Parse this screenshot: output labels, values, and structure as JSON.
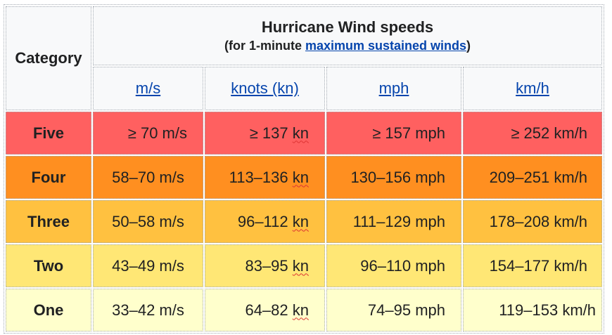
{
  "header": {
    "category_label": "Category",
    "title": "Hurricane Wind speeds",
    "subtitle_prefix": "(for 1-minute ",
    "subtitle_link": "maximum sustained winds",
    "subtitle_suffix": ")",
    "units": [
      {
        "label": "m/s"
      },
      {
        "label": "knots (kn)"
      },
      {
        "label": "mph"
      },
      {
        "label": "km/h"
      }
    ]
  },
  "rows": [
    {
      "category": "Five",
      "ms": "≥ 70 m/s",
      "kn_value": "≥ 137 ",
      "kn_unit": "kn",
      "mph": "≥ 157 mph",
      "kmh": "≥ 252 km/h",
      "color": "#ff6060"
    },
    {
      "category": "Four",
      "ms": "58–70 m/s",
      "kn_value": "113–136 ",
      "kn_unit": "kn",
      "mph": "130–156 mph",
      "kmh": "209–251 km/h",
      "color": "#ff8f20"
    },
    {
      "category": "Three",
      "ms": "50–58 m/s",
      "kn_value": "96–112 ",
      "kn_unit": "kn",
      "mph": "111–129 mph",
      "kmh": "178–208 km/h",
      "color": "#ffc140"
    },
    {
      "category": "Two",
      "ms": "43–49 m/s",
      "kn_value": "83–95 ",
      "kn_unit": "kn",
      "mph": "96–110 mph",
      "kmh": "154–177 km/h",
      "color": "#ffe775"
    },
    {
      "category": "One",
      "ms": "33–42 m/s",
      "kn_value": "64–82 ",
      "kn_unit": "kn",
      "mph": "74–95 mph",
      "kmh": "119–153 km/h",
      "color": "#ffffcc"
    }
  ]
}
